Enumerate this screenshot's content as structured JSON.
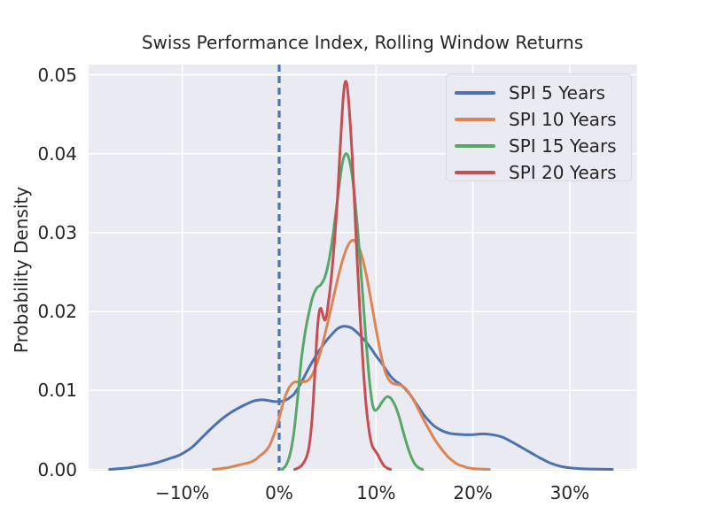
{
  "chart_data": {
    "type": "line",
    "subtype": "kde-density",
    "title": "Swiss Performance Index, Rolling Window Returns",
    "xlabel": "",
    "ylabel": "Probability Density",
    "x_unit": "percent_return",
    "xlim": [
      -19.6,
      36.9
    ],
    "ylim": [
      0,
      0.0513
    ],
    "grid": true,
    "background_color": "#eaeaf2",
    "gridline_color": "#ffffff",
    "text_color": "#262626",
    "legend_position": "upper right",
    "reference_line": {
      "x": 0,
      "style": "dashed",
      "color": "#4c72b0",
      "name": "zero-return-line"
    },
    "xticks": [
      {
        "v": -10,
        "label": "−10%"
      },
      {
        "v": 0,
        "label": "0%"
      },
      {
        "v": 10,
        "label": "10%"
      },
      {
        "v": 20,
        "label": "20%"
      },
      {
        "v": 30,
        "label": "30%"
      }
    ],
    "yticks": [
      {
        "v": 0.0,
        "label": "0.00"
      },
      {
        "v": 0.01,
        "label": "0.01"
      },
      {
        "v": 0.02,
        "label": "0.02"
      },
      {
        "v": 0.03,
        "label": "0.03"
      },
      {
        "v": 0.04,
        "label": "0.04"
      },
      {
        "v": 0.05,
        "label": "0.05"
      }
    ],
    "series": [
      {
        "name": "SPI 5 Years",
        "color": "#4c72b0",
        "points": [
          [
            -17.5,
            0
          ],
          [
            -16.5,
            0.0001
          ],
          [
            -15.5,
            0.0002
          ],
          [
            -14.5,
            0.0004
          ],
          [
            -13.5,
            0.0006
          ],
          [
            -12.5,
            0.0009
          ],
          [
            -11.5,
            0.0013
          ],
          [
            -10.5,
            0.0017
          ],
          [
            -10,
            0.002
          ],
          [
            -9,
            0.0028
          ],
          [
            -8,
            0.004
          ],
          [
            -7,
            0.0052
          ],
          [
            -6,
            0.0063
          ],
          [
            -5,
            0.0072
          ],
          [
            -4,
            0.0079
          ],
          [
            -3,
            0.0085
          ],
          [
            -2.5,
            0.0087
          ],
          [
            -2,
            0.0088
          ],
          [
            -1.5,
            0.0088
          ],
          [
            -1,
            0.0087
          ],
          [
            -0.5,
            0.0086
          ],
          [
            0,
            0.0086
          ],
          [
            0.5,
            0.0087
          ],
          [
            1,
            0.009
          ],
          [
            1.5,
            0.0095
          ],
          [
            2,
            0.0104
          ],
          [
            2.5,
            0.0115
          ],
          [
            3,
            0.0127
          ],
          [
            3.5,
            0.0138
          ],
          [
            4,
            0.0148
          ],
          [
            4.5,
            0.0157
          ],
          [
            5,
            0.0165
          ],
          [
            5.5,
            0.0172
          ],
          [
            6,
            0.0178
          ],
          [
            6.5,
            0.0181
          ],
          [
            7,
            0.0181
          ],
          [
            7.5,
            0.0179
          ],
          [
            8,
            0.0174
          ],
          [
            8.5,
            0.0168
          ],
          [
            9,
            0.0161
          ],
          [
            9.5,
            0.0153
          ],
          [
            10,
            0.0144
          ],
          [
            10.5,
            0.0136
          ],
          [
            11,
            0.0127
          ],
          [
            11.5,
            0.0118
          ],
          [
            12,
            0.0112
          ],
          [
            12.5,
            0.0108
          ],
          [
            13,
            0.0102
          ],
          [
            13.5,
            0.0095
          ],
          [
            14,
            0.0086
          ],
          [
            14.5,
            0.0077
          ],
          [
            15,
            0.0068
          ],
          [
            15.5,
            0.0061
          ],
          [
            16,
            0.0055
          ],
          [
            16.5,
            0.0051
          ],
          [
            17,
            0.0048
          ],
          [
            17.5,
            0.0046
          ],
          [
            18,
            0.0045
          ],
          [
            19,
            0.0044
          ],
          [
            20,
            0.0044
          ],
          [
            21,
            0.0045
          ],
          [
            22,
            0.0044
          ],
          [
            23,
            0.0041
          ],
          [
            24,
            0.0035
          ],
          [
            25,
            0.0028
          ],
          [
            26,
            0.0021
          ],
          [
            27,
            0.0014
          ],
          [
            28,
            0.0008
          ],
          [
            29,
            0.0004
          ],
          [
            30,
            0.0002
          ],
          [
            31,
            0.0001
          ],
          [
            32,
            5e-05
          ],
          [
            33,
            2e-05
          ],
          [
            34.4,
            0
          ]
        ]
      },
      {
        "name": "SPI 10 Years",
        "color": "#dd8452",
        "points": [
          [
            -6.8,
            0
          ],
          [
            -6,
            0.0001
          ],
          [
            -5,
            0.0003
          ],
          [
            -4,
            0.0006
          ],
          [
            -3,
            0.0009
          ],
          [
            -2.5,
            0.0012
          ],
          [
            -2,
            0.0017
          ],
          [
            -1.5,
            0.0022
          ],
          [
            -1,
            0.003
          ],
          [
            -0.5,
            0.0045
          ],
          [
            0,
            0.0065
          ],
          [
            0.5,
            0.0088
          ],
          [
            1,
            0.0103
          ],
          [
            1.5,
            0.011
          ],
          [
            2,
            0.0111
          ],
          [
            2.5,
            0.0111
          ],
          [
            3,
            0.0113
          ],
          [
            3.5,
            0.0122
          ],
          [
            4,
            0.0138
          ],
          [
            4.5,
            0.016
          ],
          [
            5,
            0.0185
          ],
          [
            5.5,
            0.0212
          ],
          [
            6,
            0.0239
          ],
          [
            6.5,
            0.0263
          ],
          [
            7,
            0.0281
          ],
          [
            7.5,
            0.029
          ],
          [
            8,
            0.0287
          ],
          [
            8.5,
            0.0272
          ],
          [
            9,
            0.0246
          ],
          [
            9.5,
            0.0213
          ],
          [
            10,
            0.0178
          ],
          [
            10.5,
            0.0146
          ],
          [
            11,
            0.0122
          ],
          [
            11.5,
            0.0111
          ],
          [
            12,
            0.0108
          ],
          [
            12.5,
            0.0107
          ],
          [
            13,
            0.0103
          ],
          [
            13.5,
            0.0095
          ],
          [
            14,
            0.0085
          ],
          [
            14.5,
            0.0073
          ],
          [
            15,
            0.0061
          ],
          [
            15.5,
            0.005
          ],
          [
            16,
            0.0039
          ],
          [
            16.5,
            0.003
          ],
          [
            17,
            0.0022
          ],
          [
            17.5,
            0.0015
          ],
          [
            18,
            0.001
          ],
          [
            18.5,
            0.0006
          ],
          [
            19,
            0.0004
          ],
          [
            19.5,
            0.0002
          ],
          [
            20,
            0.0001
          ],
          [
            20.7,
            5e-05
          ],
          [
            21.7,
            0
          ]
        ]
      },
      {
        "name": "SPI 15 Years",
        "color": "#55a868",
        "points": [
          [
            0.3,
            0
          ],
          [
            0.7,
            0.0005
          ],
          [
            1.1,
            0.0018
          ],
          [
            1.5,
            0.0045
          ],
          [
            1.9,
            0.009
          ],
          [
            2.3,
            0.014
          ],
          [
            2.7,
            0.0175
          ],
          [
            3.1,
            0.02
          ],
          [
            3.5,
            0.022
          ],
          [
            3.9,
            0.023
          ],
          [
            4.3,
            0.0234
          ],
          [
            4.7,
            0.0243
          ],
          [
            5.1,
            0.0262
          ],
          [
            5.5,
            0.0292
          ],
          [
            5.9,
            0.033
          ],
          [
            6.3,
            0.037
          ],
          [
            6.6,
            0.0392
          ],
          [
            6.9,
            0.04
          ],
          [
            7.2,
            0.0394
          ],
          [
            7.5,
            0.0375
          ],
          [
            7.8,
            0.0344
          ],
          [
            8.1,
            0.0305
          ],
          [
            8.4,
            0.0258
          ],
          [
            8.7,
            0.0208
          ],
          [
            9,
            0.0158
          ],
          [
            9.3,
            0.0115
          ],
          [
            9.6,
            0.0085
          ],
          [
            9.8,
            0.0076
          ],
          [
            10,
            0.0075
          ],
          [
            10.3,
            0.0079
          ],
          [
            10.6,
            0.0085
          ],
          [
            11,
            0.0091
          ],
          [
            11.3,
            0.0092
          ],
          [
            11.6,
            0.0089
          ],
          [
            12,
            0.008
          ],
          [
            12.4,
            0.0066
          ],
          [
            12.8,
            0.0048
          ],
          [
            13.2,
            0.0031
          ],
          [
            13.6,
            0.0017
          ],
          [
            14,
            0.0007
          ],
          [
            14.4,
            0.0002
          ],
          [
            14.8,
            0
          ]
        ]
      },
      {
        "name": "SPI 20 Years",
        "color": "#c44e52",
        "points": [
          [
            1.6,
            0
          ],
          [
            2,
            0.0002
          ],
          [
            2.4,
            0.0006
          ],
          [
            2.8,
            0.0015
          ],
          [
            3.1,
            0.003
          ],
          [
            3.4,
            0.0065
          ],
          [
            3.7,
            0.0125
          ],
          [
            3.9,
            0.017
          ],
          [
            4.1,
            0.0197
          ],
          [
            4.3,
            0.0204
          ],
          [
            4.5,
            0.0196
          ],
          [
            4.7,
            0.0189
          ],
          [
            4.9,
            0.0196
          ],
          [
            5.1,
            0.0213
          ],
          [
            5.4,
            0.0245
          ],
          [
            5.7,
            0.0288
          ],
          [
            6,
            0.034
          ],
          [
            6.3,
            0.0408
          ],
          [
            6.6,
            0.0468
          ],
          [
            6.8,
            0.049
          ],
          [
            7,
            0.0487
          ],
          [
            7.2,
            0.0462
          ],
          [
            7.5,
            0.0405
          ],
          [
            7.8,
            0.033
          ],
          [
            8.1,
            0.0255
          ],
          [
            8.4,
            0.0185
          ],
          [
            8.7,
            0.0125
          ],
          [
            9,
            0.0078
          ],
          [
            9.3,
            0.0048
          ],
          [
            9.6,
            0.003
          ],
          [
            9.9,
            0.0024
          ],
          [
            10.2,
            0.0018
          ],
          [
            10.5,
            0.0011
          ],
          [
            10.8,
            0.0005
          ],
          [
            11.1,
            0.0002
          ],
          [
            11.5,
            0
          ]
        ]
      }
    ]
  }
}
